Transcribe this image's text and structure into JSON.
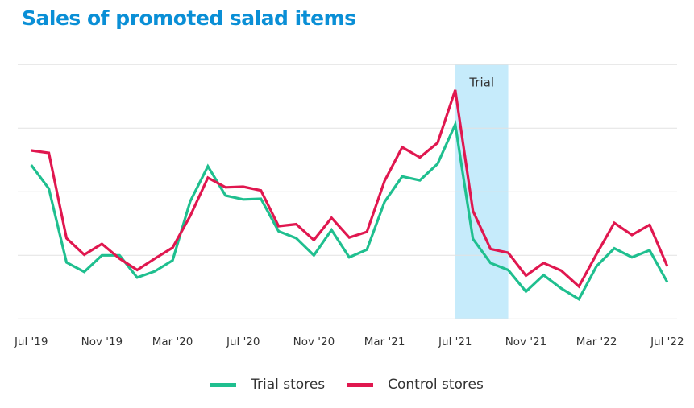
{
  "chart_data": {
    "type": "line",
    "title": "Sales of promoted salad items",
    "xlabel": "",
    "ylabel": "",
    "ylim": [
      0,
      4
    ],
    "grid": true,
    "y_tick_labels_shown": false,
    "x": [
      "Jul '19",
      "Aug '19",
      "Sep '19",
      "Oct '19",
      "Nov '19",
      "Dec '19",
      "Jan '20",
      "Feb '20",
      "Mar '20",
      "Apr '20",
      "May '20",
      "Jun '20",
      "Jul '20",
      "Aug '20",
      "Sep '20",
      "Oct '20",
      "Nov '20",
      "Dec '20",
      "Jan '21",
      "Feb '21",
      "Mar '21",
      "Apr '21",
      "May '21",
      "Jun '21",
      "Jul '21",
      "Aug '21",
      "Sep '21",
      "Oct '21",
      "Nov '21",
      "Dec '21",
      "Jan '22",
      "Feb '22",
      "Mar '22",
      "Apr '22",
      "May '22",
      "Jun '22",
      "Jul '22"
    ],
    "x_tick_labels": [
      "Jul '19",
      "Nov '19",
      "Mar '20",
      "Jul '20",
      "Nov '20",
      "Mar '21",
      "Jul '21",
      "Nov '21",
      "Mar '22",
      "Jul '22"
    ],
    "series": [
      {
        "name": "Trial stores",
        "color": "#1fbf8f",
        "values": [
          2.42,
          2.05,
          0.89,
          0.74,
          1.0,
          1.0,
          0.65,
          0.75,
          0.92,
          1.85,
          2.4,
          1.94,
          1.88,
          1.89,
          1.38,
          1.27,
          1.0,
          1.4,
          0.97,
          1.09,
          1.84,
          2.24,
          2.18,
          2.44,
          3.06,
          1.26,
          0.88,
          0.77,
          0.43,
          0.69,
          0.48,
          0.31,
          0.83,
          1.11,
          0.97,
          1.08,
          0.58
        ]
      },
      {
        "name": "Control stores",
        "color": "#e0174f",
        "values": [
          2.65,
          2.61,
          1.27,
          1.01,
          1.18,
          0.95,
          0.77,
          0.95,
          1.12,
          1.62,
          2.22,
          2.07,
          2.08,
          2.02,
          1.46,
          1.49,
          1.24,
          1.59,
          1.28,
          1.37,
          2.17,
          2.7,
          2.54,
          2.77,
          3.6,
          1.7,
          1.1,
          1.04,
          0.68,
          0.88,
          0.76,
          0.51,
          1.02,
          1.51,
          1.32,
          1.48,
          0.83
        ]
      }
    ],
    "annotations": [
      {
        "type": "shaded-band",
        "label": "Trial",
        "from": "Jul '21",
        "to": "Oct '21",
        "color": "#c6ebfb"
      }
    ],
    "legend_placement": "bottom-center"
  },
  "colors": {
    "title": "#0a8fd6",
    "grid": "#e2e2e2",
    "axis_text": "#333333"
  }
}
